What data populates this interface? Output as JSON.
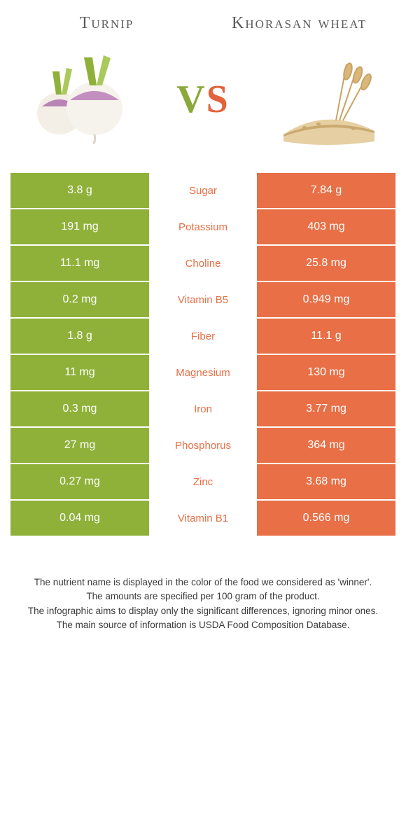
{
  "colors": {
    "left": "#8fb13a",
    "right": "#e86f46",
    "mid_left_text": "#8fb13a",
    "mid_right_text": "#e86f46",
    "title_text": "#5a5a5a",
    "footer_text": "#3a3a3a"
  },
  "header": {
    "left_title": "Turnip",
    "right_title": "Khorasan wheat",
    "vs": {
      "v": "V",
      "s": "S"
    }
  },
  "rows": [
    {
      "left": "3.8 g",
      "label": "Sugar",
      "right": "7.84 g",
      "winner": "right"
    },
    {
      "left": "191 mg",
      "label": "Potassium",
      "right": "403 mg",
      "winner": "right"
    },
    {
      "left": "11.1 mg",
      "label": "Choline",
      "right": "25.8 mg",
      "winner": "right"
    },
    {
      "left": "0.2 mg",
      "label": "Vitamin B5",
      "right": "0.949 mg",
      "winner": "right"
    },
    {
      "left": "1.8 g",
      "label": "Fiber",
      "right": "11.1 g",
      "winner": "right"
    },
    {
      "left": "11 mg",
      "label": "Magnesium",
      "right": "130 mg",
      "winner": "right"
    },
    {
      "left": "0.3 mg",
      "label": "Iron",
      "right": "3.77 mg",
      "winner": "right"
    },
    {
      "left": "27 mg",
      "label": "Phosphorus",
      "right": "364 mg",
      "winner": "right"
    },
    {
      "left": "0.27 mg",
      "label": "Zinc",
      "right": "3.68 mg",
      "winner": "right"
    },
    {
      "left": "0.04 mg",
      "label": "Vitamin B1",
      "right": "0.566 mg",
      "winner": "right"
    }
  ],
  "footer": {
    "line1": "The nutrient name is displayed in the color of the food we considered as 'winner'.",
    "line2": "The amounts are specified per 100 gram of the product.",
    "line3": "The infographic aims to display only the significant differences, ignoring minor ones.",
    "line4": "The main source of information is USDA Food Composition Database."
  }
}
